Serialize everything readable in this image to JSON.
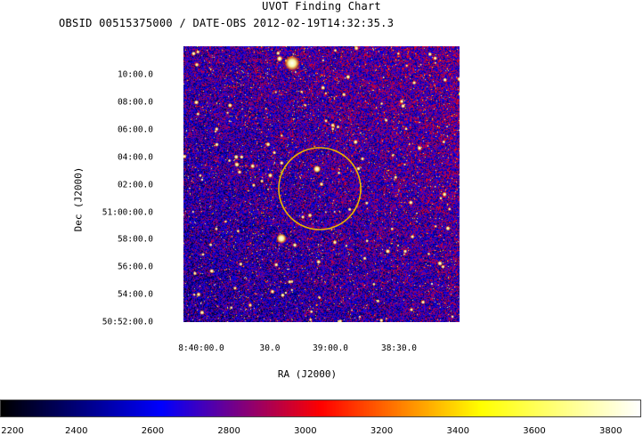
{
  "chart_data": {
    "type": "heatmap",
    "title": "UVOT Finding Chart",
    "subtitle": "OBSID 00515375000 / DATE-OBS 2012-02-19T14:32:35.3",
    "xlabel": "RA (J2000)",
    "ylabel": "Dec (J2000)",
    "x_ticks": [
      "8:40:00.0",
      "30.0",
      "39:00.0",
      "38:30.0"
    ],
    "y_ticks": [
      "10:00.0",
      "08:00.0",
      "06:00.0",
      "04:00.0",
      "02:00.0",
      "51:00:00.0",
      "58:00.0",
      "56:00.0",
      "54:00.0",
      "50:52:00.0"
    ],
    "colorbar": {
      "range": [
        2200,
        3880
      ],
      "tick_labels": [
        "2200",
        "2400",
        "2600",
        "2800",
        "3000",
        "3200",
        "3400",
        "3600",
        "3800"
      ],
      "tick_values": [
        2200,
        2400,
        2600,
        2800,
        3000,
        3200,
        3400,
        3600,
        3800
      ]
    },
    "colormap": [
      "#000000",
      "#0000ff",
      "#ff0000",
      "#ffff00",
      "#ffffff"
    ],
    "annotation": {
      "shape": "circle",
      "color": "#e8b400"
    }
  }
}
